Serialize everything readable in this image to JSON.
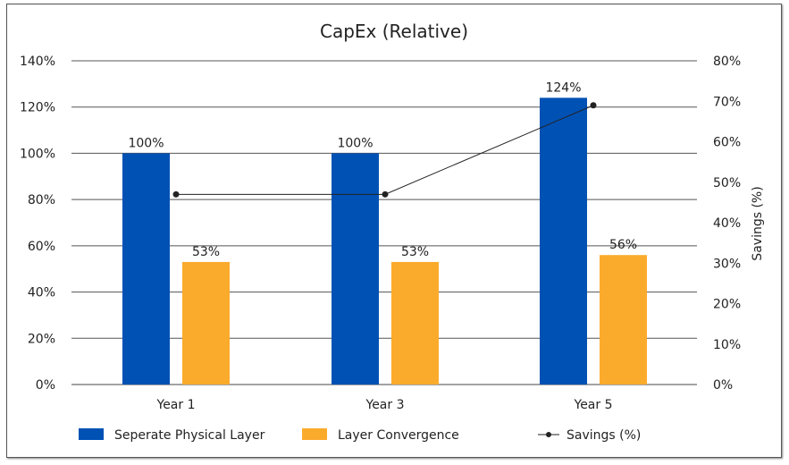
{
  "chart_data": {
    "type": "bar",
    "title": "CapEx (Relative)",
    "categories": [
      "Year 1",
      "Year 3",
      "Year 5"
    ],
    "series": [
      {
        "name": "Seperate Physical Layer",
        "type": "bar",
        "axis": "left",
        "values": [
          100,
          100,
          124
        ],
        "labels": [
          "100%",
          "100%",
          "124%"
        ],
        "color": "#0051b4"
      },
      {
        "name": "Layer Convergence",
        "type": "bar",
        "axis": "left",
        "values": [
          53,
          53,
          56
        ],
        "labels": [
          "53%",
          "53%",
          "56%"
        ],
        "color": "#fbab2c"
      },
      {
        "name": "Savings (%)",
        "type": "line",
        "axis": "right",
        "values": [
          47,
          47,
          69
        ],
        "color": "#222222"
      }
    ],
    "y_left": {
      "range": [
        0,
        140
      ],
      "ticks": [
        "0%",
        "20%",
        "40%",
        "60%",
        "80%",
        "100%",
        "120%",
        "140%"
      ],
      "label": ""
    },
    "y_right": {
      "range": [
        0,
        80
      ],
      "ticks": [
        "0%",
        "10%",
        "20%",
        "30%",
        "40%",
        "50%",
        "60%",
        "70%",
        "80%"
      ],
      "label": "Savings (%)"
    },
    "grid": true,
    "legend": "bottom"
  }
}
